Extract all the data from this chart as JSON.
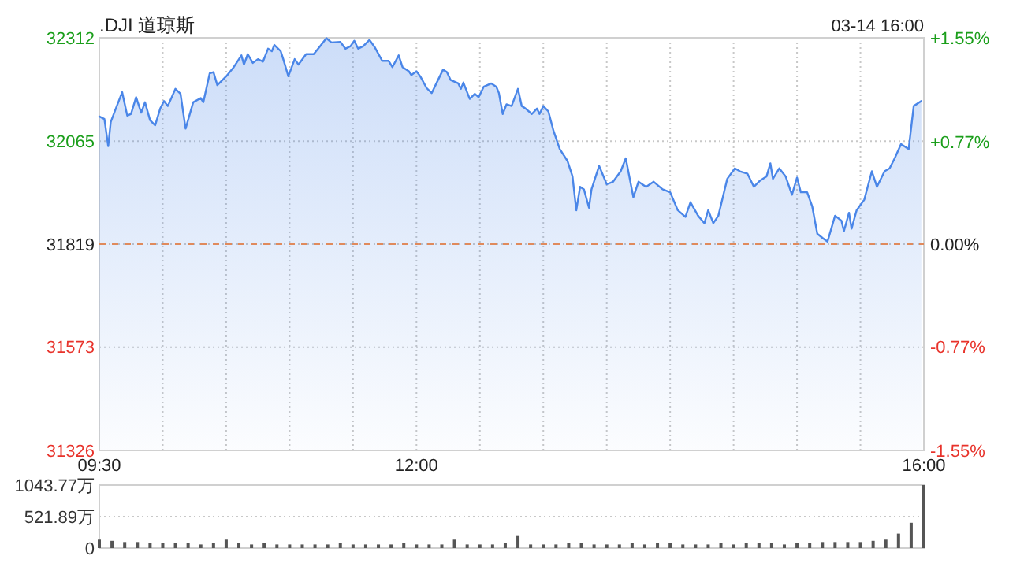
{
  "chart_data": [
    {
      "type": "area",
      "title": ".DJI 道琼斯",
      "annotations": [
        "03-14 16:00"
      ],
      "xlim": [
        9.5,
        16
      ],
      "xticks": [
        {
          "value": 9.5,
          "label": "09:30"
        },
        {
          "value": 10,
          "label": null
        },
        {
          "value": 10.5,
          "label": null
        },
        {
          "value": 11,
          "label": null
        },
        {
          "value": 11.5,
          "label": null
        },
        {
          "value": 12,
          "label": "12:00"
        },
        {
          "value": 12.5,
          "label": null
        },
        {
          "value": 13,
          "label": null
        },
        {
          "value": 13.5,
          "label": null
        },
        {
          "value": 14,
          "label": null
        },
        {
          "value": 14.5,
          "label": null
        },
        {
          "value": 15,
          "label": null
        },
        {
          "value": 15.5,
          "label": null
        },
        {
          "value": 16,
          "label": "16:00"
        }
      ],
      "ylim": [
        31326,
        32312
      ],
      "yticks": [
        31326,
        31573,
        31819,
        32065,
        32312
      ],
      "y2lim": [
        -1.55,
        1.55
      ],
      "y2ticks": [
        {
          "value": -1.55,
          "label": "-1.55%"
        },
        {
          "value": -0.77,
          "label": "-0.77%"
        },
        {
          "value": 0,
          "label": "0.00%"
        },
        {
          "value": 0.77,
          "label": "+0.77%"
        },
        {
          "value": 1.55,
          "label": "+1.55%"
        }
      ],
      "grid": true,
      "ref_lines": [
        {
          "axis": "y",
          "value": 31819,
          "color": "#e08a5c",
          "line_style": "dashed"
        }
      ],
      "series": [
        {
          "color": "#4a86e8",
          "x": [
            9.5,
            9.54,
            9.57,
            9.59,
            9.63,
            9.68,
            9.72,
            9.75,
            9.79,
            9.83,
            9.86,
            9.9,
            9.94,
            9.98,
            10.01,
            10.04,
            10.1,
            10.14,
            10.18,
            10.24,
            10.3,
            10.32,
            10.37,
            10.4,
            10.43,
            10.5,
            10.56,
            10.62,
            10.64,
            10.67,
            10.71,
            10.75,
            10.79,
            10.83,
            10.86,
            10.88,
            10.93,
            10.95,
            10.99,
            11.04,
            11.07,
            11.13,
            11.19,
            11.24,
            11.29,
            11.33,
            11.4,
            11.44,
            11.48,
            11.51,
            11.54,
            11.58,
            11.63,
            11.67,
            11.73,
            11.78,
            11.81,
            11.86,
            11.89,
            11.94,
            11.96,
            12,
            12.03,
            12.08,
            12.12,
            12.16,
            12.21,
            12.24,
            12.27,
            12.33,
            12.35,
            12.37,
            12.42,
            12.46,
            12.49,
            12.53,
            12.59,
            12.63,
            12.65,
            12.68,
            12.71,
            12.75,
            12.8,
            12.83,
            12.86,
            12.91,
            12.95,
            12.97,
            13,
            13.04,
            13.08,
            13.13,
            13.19,
            13.23,
            13.26,
            13.29,
            13.32,
            13.36,
            13.38,
            13.44,
            13.5,
            13.55,
            13.61,
            13.65,
            13.71,
            13.75,
            13.81,
            13.87,
            13.94,
            14,
            14.06,
            14.12,
            14.16,
            14.22,
            14.27,
            14.3,
            14.34,
            14.38,
            14.45,
            14.51,
            14.55,
            14.61,
            14.66,
            14.71,
            14.76,
            14.79,
            14.81,
            14.86,
            14.91,
            14.96,
            15,
            15.03,
            15.08,
            15.12,
            15.16,
            15.2,
            15.24,
            15.3,
            15.35,
            15.37,
            15.41,
            15.43,
            15.47,
            15.53,
            15.59,
            15.63,
            15.69,
            15.73,
            15.77,
            15.82,
            15.88,
            15.92,
            15.98
          ],
          "values": [
            32124,
            32118,
            32053,
            32111,
            32143,
            32182,
            32126,
            32130,
            32170,
            32133,
            32158,
            32115,
            32103,
            32143,
            32161,
            32149,
            32190,
            32178,
            32095,
            32158,
            32168,
            32158,
            32227,
            32230,
            32199,
            32220,
            32242,
            32270,
            32248,
            32273,
            32252,
            32261,
            32255,
            32286,
            32280,
            32295,
            32280,
            32261,
            32220,
            32261,
            32248,
            32273,
            32273,
            32292,
            32311,
            32301,
            32302,
            32286,
            32292,
            32305,
            32286,
            32292,
            32307,
            32290,
            32257,
            32257,
            32242,
            32270,
            32242,
            32232,
            32223,
            32232,
            32220,
            32192,
            32180,
            32205,
            32236,
            32230,
            32211,
            32203,
            32190,
            32205,
            32166,
            32178,
            32170,
            32195,
            32203,
            32195,
            32180,
            32130,
            32153,
            32149,
            32190,
            32149,
            32143,
            32130,
            32143,
            32130,
            32149,
            32136,
            32090,
            32046,
            32018,
            31981,
            31900,
            31956,
            31950,
            31906,
            31950,
            32006,
            31962,
            31968,
            31993,
            32024,
            31931,
            31968,
            31956,
            31968,
            31950,
            31943,
            31900,
            31884,
            31919,
            31887,
            31869,
            31900,
            31869,
            31887,
            31975,
            32000,
            31993,
            31987,
            31956,
            31971,
            31981,
            32012,
            31975,
            32000,
            31981,
            31937,
            31978,
            31943,
            31943,
            31909,
            31844,
            31834,
            31825,
            31887,
            31875,
            31850,
            31894,
            31856,
            31900,
            31925,
            31993,
            31956,
            31993,
            32000,
            32024,
            32058,
            32046,
            32149,
            32161
          ]
        }
      ]
    },
    {
      "type": "bar",
      "tick_labels": "y",
      "grid": "y",
      "xlim": [
        9.5,
        16
      ],
      "ylim": [
        0,
        1043.77
      ],
      "yticks": [
        0,
        {
          "value": 521.89,
          "label": "521.89万"
        },
        {
          "value": 1043.77,
          "label": "1043.77万"
        }
      ],
      "series": [
        {
          "color": "#555555",
          "x": [
            9.5,
            9.6,
            9.7,
            9.8,
            9.9,
            10,
            10.1,
            10.2,
            10.3,
            10.4,
            10.5,
            10.6,
            10.7,
            10.8,
            10.9,
            11,
            11.1,
            11.2,
            11.3,
            11.4,
            11.5,
            11.6,
            11.7,
            11.8,
            11.9,
            12,
            12.1,
            12.2,
            12.3,
            12.4,
            12.5,
            12.6,
            12.7,
            12.8,
            12.9,
            13,
            13.1,
            13.2,
            13.3,
            13.4,
            13.5,
            13.6,
            13.7,
            13.8,
            13.9,
            14,
            14.1,
            14.2,
            14.3,
            14.4,
            14.5,
            14.6,
            14.7,
            14.8,
            14.9,
            15,
            15.1,
            15.2,
            15.3,
            15.4,
            15.5,
            15.6,
            15.7,
            15.8,
            15.9,
            16
          ],
          "values": [
            140,
            120,
            100,
            100,
            80,
            80,
            80,
            80,
            60,
            80,
            140,
            80,
            60,
            80,
            60,
            60,
            60,
            60,
            60,
            80,
            60,
            60,
            60,
            60,
            80,
            60,
            60,
            60,
            140,
            60,
            60,
            60,
            80,
            200,
            60,
            60,
            60,
            80,
            80,
            60,
            60,
            60,
            80,
            60,
            80,
            80,
            60,
            60,
            60,
            80,
            60,
            80,
            80,
            80,
            60,
            80,
            80,
            100,
            100,
            100,
            100,
            120,
            140,
            240,
            420,
            1043.77
          ]
        }
      ]
    }
  ]
}
